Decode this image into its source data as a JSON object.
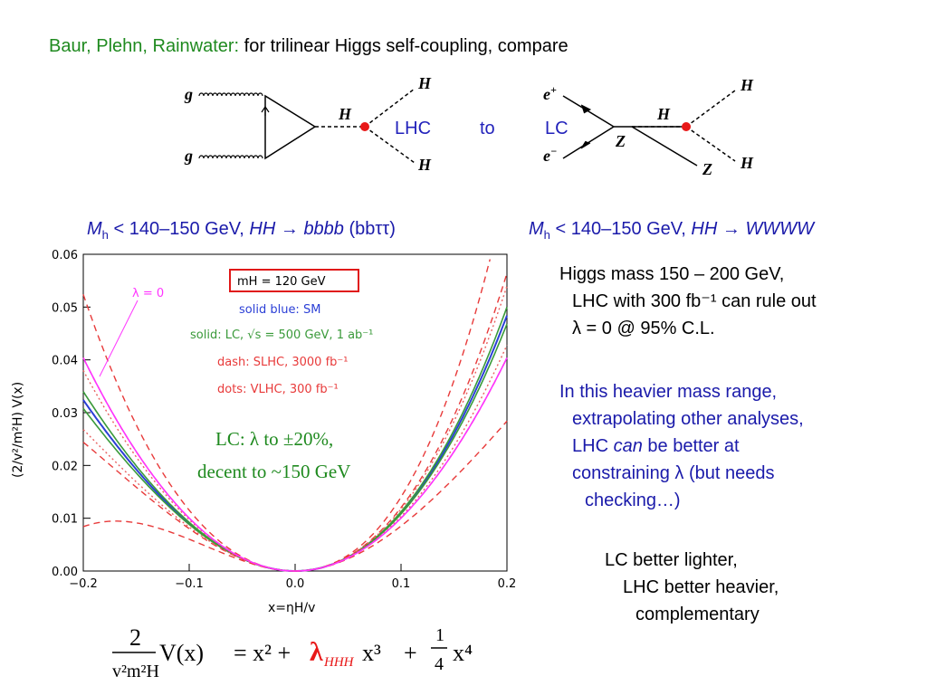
{
  "title": {
    "authors": "Baur, Plehn, Rainwater:",
    "rest": " for trilinear Higgs self-coupling, compare"
  },
  "diagram": {
    "lhc_label": "LHC",
    "to_label": "to",
    "lc_label": "LC",
    "g": "g",
    "H": "H",
    "e_plus": "e",
    "e_minus": "e",
    "Z": "Z",
    "plus": "+",
    "minus": "−"
  },
  "headings": {
    "left": {
      "M": "M",
      "sub": "h",
      "range": " < 140–150 GeV, ",
      "HH": "HH",
      "arrow": " → ",
      "final": "bbbb",
      "paren": " (bbττ)"
    },
    "right": {
      "M": "M",
      "sub": "h",
      "range": " < 140–150 GeV, ",
      "HH": "HH",
      "arrow": " → ",
      "final": "WWWW"
    }
  },
  "notes": {
    "p1": [
      "Higgs mass 150 – 200 GeV,",
      "LHC with 300 fb⁻¹  can rule out",
      "λ = 0 @ 95% C.L."
    ],
    "p2": [
      "In this heavier mass range,",
      "extrapolating other analyses,",
      "LHC",
      "can",
      "be better at",
      "constraining λ (but needs",
      "checking…)"
    ],
    "p3": [
      "LC better lighter,",
      "LHC better heavier,",
      "complementary"
    ]
  },
  "plot": {
    "ylabel": "(2/v²/m²H) V(x)",
    "xlabel": "x=ηH/v",
    "legend": {
      "box": "mH = 120 GeV",
      "blue": "solid blue: SM",
      "green": "solid: LC, √s = 500 GeV, 1 ab⁻¹",
      "dash": "dash: SLHC, 3000 fb⁻¹",
      "dots": "dots: VLHC, 300 fb⁻¹",
      "lambda0": "λ = 0"
    },
    "annotation": [
      "LC: λ to ±20%,",
      "decent to ~150 GeV"
    ],
    "colors": {
      "sm": "#2b3fd6",
      "lc": "#3a9a3a",
      "slhc": "#e83a3a",
      "vlhc": "#e86060",
      "lambda0": "#ff33ff",
      "box": "#e01818"
    }
  },
  "formula": {
    "num": "2",
    "den": "v²m²H",
    "lhs": "V(x)",
    "eq": "= x² +",
    "lam": "λ",
    "lamsub": "HHH",
    "x3": " x³",
    "plus": "+",
    "frac_num": "1",
    "frac_den": "4",
    "x4": "x⁴"
  },
  "chart_data": {
    "type": "line",
    "xlabel": "x=ηH/v",
    "ylabel": "(2/v²/m²H) V(x)",
    "xlim": [
      -0.2,
      0.2
    ],
    "ylim": [
      0,
      0.06
    ],
    "xticks": [
      "−0.2",
      "−0.1",
      "0.0",
      "0.1",
      "0.2"
    ],
    "yticks": [
      "0.00",
      "0.01",
      "0.02",
      "0.03",
      "0.04",
      "0.05",
      "0.06"
    ],
    "series": [
      {
        "style": "sm",
        "lambda": 1.0
      },
      {
        "style": "lc",
        "lambda": 0.8
      },
      {
        "style": "lc",
        "lambda": 1.2
      },
      {
        "style": "slhc",
        "lambda": 0.0
      },
      {
        "style": "slhc",
        "lambda": 2.0
      },
      {
        "style": "slhc",
        "lambda": -1.5
      },
      {
        "style": "slhc",
        "lambda": 4.0
      },
      {
        "style": "vlhc",
        "lambda": 0.3
      },
      {
        "style": "vlhc",
        "lambda": 1.7
      },
      {
        "style": "lambda0",
        "lambda": 0.0
      }
    ]
  }
}
